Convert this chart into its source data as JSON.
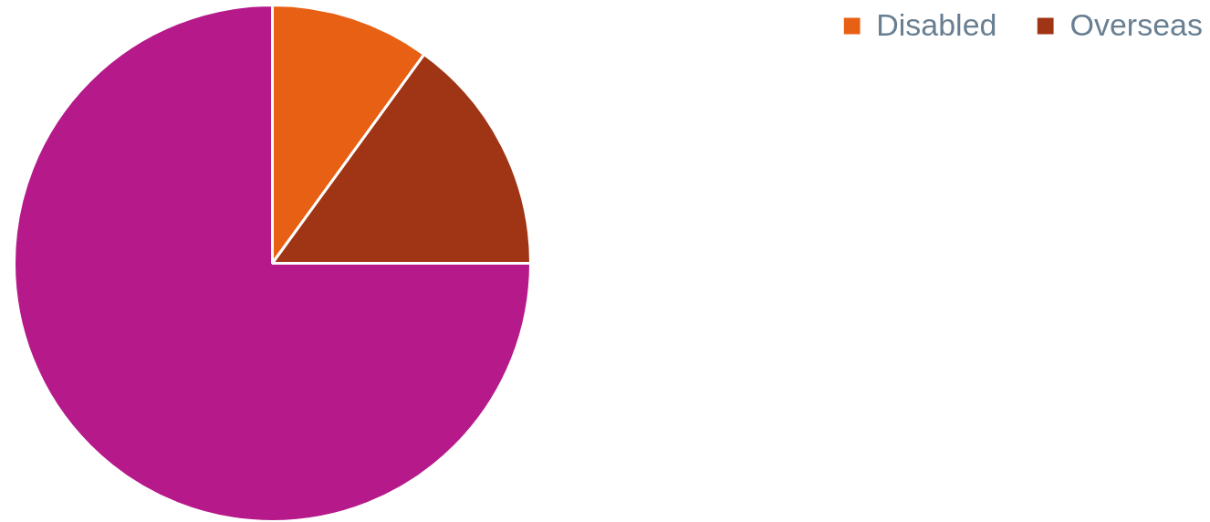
{
  "chart_data": {
    "type": "pie",
    "categories": [
      "Disabled",
      "Overseas",
      null
    ],
    "values": [
      10,
      15,
      75
    ],
    "colors": [
      "#e86013",
      "#a03515",
      "#b61a8a"
    ],
    "legend": "top right"
  }
}
